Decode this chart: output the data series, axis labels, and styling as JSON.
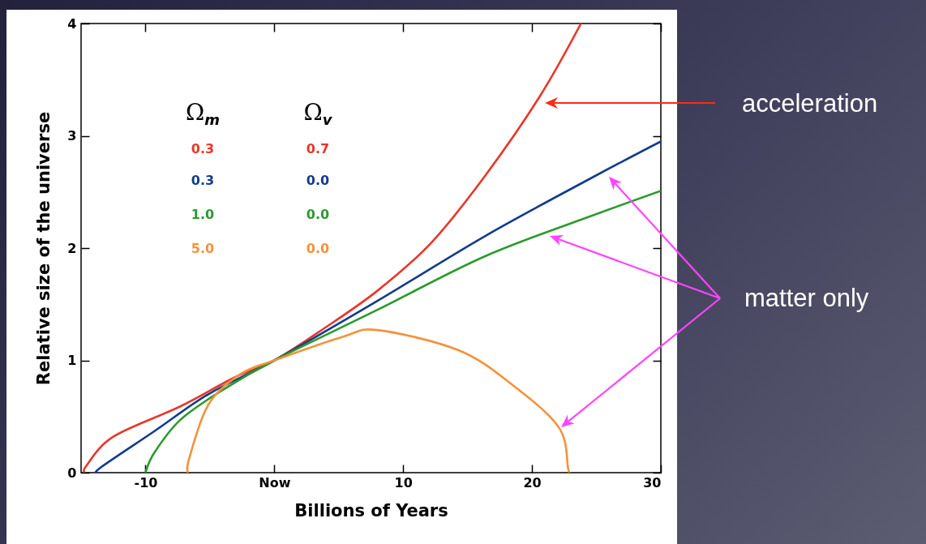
{
  "chart_data": {
    "type": "line",
    "xlabel": "Billions of Years",
    "ylabel": "Relative size of the universe",
    "xlim": [
      -15,
      30
    ],
    "ylim": [
      0,
      4
    ],
    "xticks": [
      -10,
      {
        "value": 0,
        "label": "Now"
      },
      10,
      20,
      30
    ],
    "yticks": [
      0,
      1,
      2,
      3,
      4
    ],
    "grid": false,
    "series": [
      {
        "color": "#e8372a",
        "x": [
          -14.7,
          -14.6,
          -12.5,
          -7.3,
          -3.05,
          0,
          3.8,
          8.0,
          12.2,
          16.4,
          20.6,
          23.8
        ],
        "values": [
          0,
          0.06,
          0.32,
          0.59,
          0.85,
          1,
          1.28,
          1.62,
          2.05,
          2.65,
          3.35,
          4
        ]
      },
      {
        "color": "#123c8c",
        "x": [
          -13.6,
          -13.55,
          -9.3,
          -5.1,
          0,
          8.0,
          16.4,
          24.7,
          30
        ],
        "values": [
          0,
          0.04,
          0.37,
          0.7,
          1,
          1.53,
          2.11,
          2.63,
          2.95
        ]
      },
      {
        "color": "#2b9a2e",
        "x": [
          -10.0,
          -9.3,
          -7.3,
          -4.1,
          0,
          8.0,
          16.4,
          24.7,
          30
        ],
        "values": [
          0,
          0.18,
          0.47,
          0.73,
          1,
          1.45,
          1.93,
          2.29,
          2.51
        ]
      },
      {
        "color": "#f5923a",
        "x": [
          -6.7,
          -6.6,
          -5.1,
          -2.6,
          0,
          5.3,
          8.0,
          14.3,
          18.5,
          22.1,
          22.8,
          22.9
        ],
        "values": [
          0,
          0.13,
          0.61,
          0.88,
          1,
          1.21,
          1.27,
          1.09,
          0.78,
          0.4,
          0.04,
          0
        ]
      }
    ],
    "annotations": [
      "Ω$_{m}$",
      "Ω$_{v}$",
      "0.3",
      "0.7",
      "0.3",
      "0.0",
      "1.0",
      "0.0",
      "5.0",
      "0.0",
      "acceleration",
      "matter only"
    ]
  }
}
